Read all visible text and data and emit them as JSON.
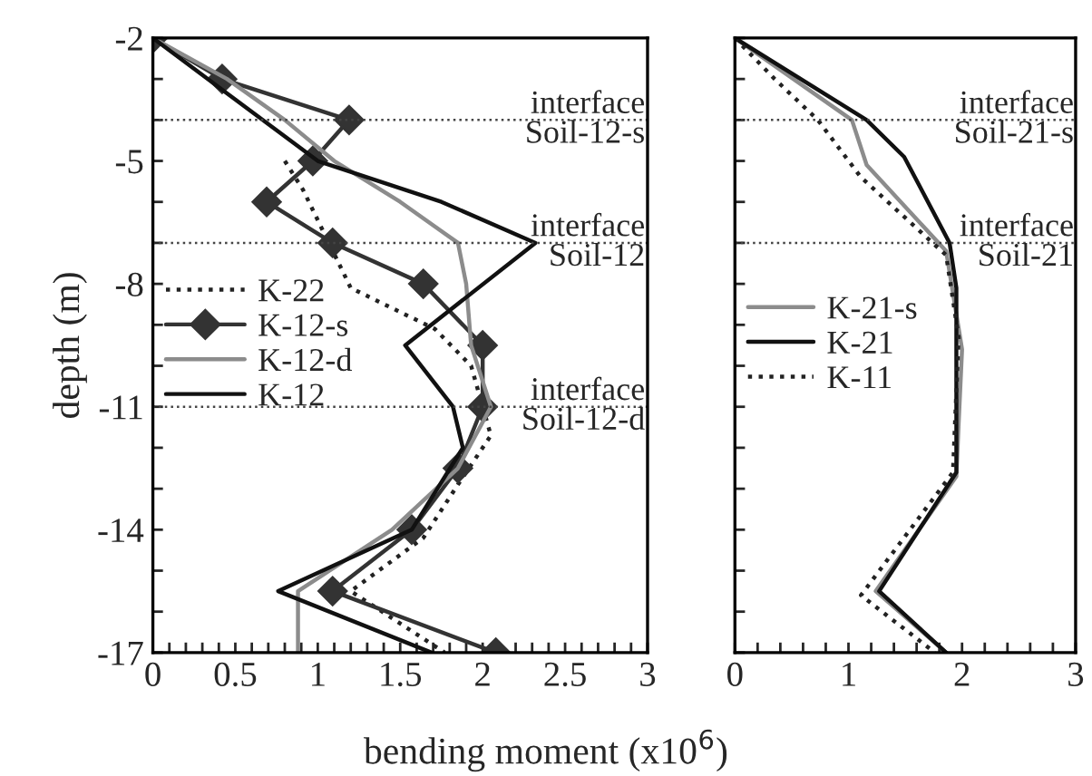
{
  "chart_data": [
    {
      "type": "line",
      "xlabel": "bending moment (x10$^{6}$)",
      "ylabel": "depth (m)",
      "legend": "center left",
      "grid": false,
      "xlim": [
        0,
        3
      ],
      "xticks": [
        0,
        {
          "value": 0.1,
          "label": null
        },
        {
          "value": 0.2,
          "label": null
        },
        {
          "value": 0.3,
          "label": null
        },
        {
          "value": 0.4,
          "label": null
        },
        0.5,
        {
          "value": 0.6,
          "label": null
        },
        {
          "value": 0.7,
          "label": null
        },
        {
          "value": 0.8,
          "label": null
        },
        {
          "value": 0.9,
          "label": null
        },
        1,
        {
          "value": 1.1,
          "label": null
        },
        {
          "value": 1.2,
          "label": null
        },
        {
          "value": 1.3,
          "label": null
        },
        {
          "value": 1.4,
          "label": null
        },
        1.5,
        {
          "value": 1.6,
          "label": null
        },
        {
          "value": 1.7,
          "label": null
        },
        {
          "value": 1.8,
          "label": null
        },
        {
          "value": 1.9,
          "label": null
        },
        2,
        {
          "value": 2.1,
          "label": null
        },
        {
          "value": 2.2,
          "label": null
        },
        {
          "value": 2.3,
          "label": null
        },
        {
          "value": 2.4,
          "label": null
        },
        2.5,
        {
          "value": 2.6,
          "label": null
        },
        {
          "value": 2.7,
          "label": null
        },
        {
          "value": 2.8,
          "label": null
        },
        {
          "value": 2.9,
          "label": null
        },
        3
      ],
      "ylim": [
        -17,
        -2
      ],
      "yticks": [
        -2,
        {
          "value": -3,
          "label": null
        },
        {
          "value": -4,
          "label": null
        },
        -5,
        {
          "value": -6,
          "label": null
        },
        {
          "value": -7,
          "label": null
        },
        -8,
        {
          "value": -9,
          "label": null
        },
        {
          "value": -10,
          "label": null
        },
        -11,
        {
          "value": -12,
          "label": null
        },
        {
          "value": -13,
          "label": null
        },
        -14,
        {
          "value": -15,
          "label": null
        },
        {
          "value": -16,
          "label": null
        },
        -17
      ],
      "ref_lines": [
        {
          "axis": "y",
          "value": -4,
          "label": "interface\nSoil-12-s",
          "line_style": "dotted"
        },
        {
          "axis": "y",
          "value": -7,
          "label": "interface\nSoil-12",
          "line_style": "dotted"
        },
        {
          "axis": "y",
          "value": -11,
          "label": "interface\nSoil-12-d",
          "line_style": "dotted"
        }
      ],
      "series": [
        {
          "name": "K-22",
          "color": "#222222",
          "line_style": "dotted",
          "marker": "none",
          "x": [
            0.8,
            0.91,
            1.2,
            1.71,
            1.93,
            2.0,
            2.05,
            1.85,
            1.64,
            1.2,
            1.77
          ],
          "values": [
            -5,
            -5.7,
            -8.1,
            -9.1,
            -10,
            -11,
            -11.7,
            -12.9,
            -14.2,
            -15.5,
            -17
          ]
        },
        {
          "name": "K-12-s",
          "color": "#333333",
          "line_style": "solid",
          "marker": "diamond",
          "x": [
            0,
            0.42,
            1.19,
            0.97,
            0.69,
            1.09,
            1.64,
            2.0,
            2.0,
            1.85,
            1.57,
            1.09,
            2.08
          ],
          "values": [
            -2,
            -3,
            -4,
            -5,
            -6,
            -7,
            -8,
            -9.5,
            -11,
            -12.5,
            -14,
            -15.5,
            -17
          ]
        },
        {
          "name": "K-12-d",
          "color": "#8c8c8c",
          "line_style": "solid",
          "marker": "none",
          "x": [
            0,
            0.45,
            0.8,
            1.1,
            1.5,
            1.85,
            1.9,
            1.93,
            2.05,
            1.85,
            1.45,
            0.88,
            0.88
          ],
          "values": [
            -2,
            -3,
            -4,
            -5,
            -6,
            -7,
            -8,
            -9.5,
            -11,
            -12.5,
            -14,
            -15.5,
            -17
          ]
        },
        {
          "name": "K-12",
          "color": "#111111",
          "line_style": "solid",
          "marker": "none",
          "x": [
            0,
            1.0,
            1.75,
            2.32,
            1.53,
            1.82,
            1.88,
            1.57,
            0.76,
            1.69
          ],
          "values": [
            -2,
            -5,
            -6,
            -7,
            -9.5,
            -11,
            -12,
            -14,
            -15.5,
            -17
          ]
        }
      ]
    },
    {
      "type": "line",
      "legend": "center left",
      "grid": false,
      "tick_labels": "x",
      "xlim": [
        0,
        3
      ],
      "xticks": [
        0,
        {
          "value": 0.2,
          "label": null
        },
        {
          "value": 0.4,
          "label": null
        },
        {
          "value": 0.6,
          "label": null
        },
        {
          "value": 0.8,
          "label": null
        },
        1,
        {
          "value": 1.2,
          "label": null
        },
        {
          "value": 1.4,
          "label": null
        },
        {
          "value": 1.6,
          "label": null
        },
        {
          "value": 1.8,
          "label": null
        },
        2,
        {
          "value": 2.2,
          "label": null
        },
        {
          "value": 2.4,
          "label": null
        },
        {
          "value": 2.6,
          "label": null
        },
        {
          "value": 2.8,
          "label": null
        },
        3
      ],
      "ylim": [
        -17,
        -2
      ],
      "yticks": [
        {
          "value": -2,
          "label": null
        },
        {
          "value": -3,
          "label": null
        },
        {
          "value": -4,
          "label": null
        },
        {
          "value": -5,
          "label": null
        },
        {
          "value": -6,
          "label": null
        },
        {
          "value": -7,
          "label": null
        },
        {
          "value": -8,
          "label": null
        },
        {
          "value": -9,
          "label": null
        },
        {
          "value": -10,
          "label": null
        },
        {
          "value": -11,
          "label": null
        },
        {
          "value": -12,
          "label": null
        },
        {
          "value": -13,
          "label": null
        },
        {
          "value": -14,
          "label": null
        },
        {
          "value": -15,
          "label": null
        },
        {
          "value": -16,
          "label": null
        },
        {
          "value": -17,
          "label": null
        }
      ],
      "ref_lines": [
        {
          "axis": "y",
          "value": -4,
          "label": "interface\nSoil-21-s",
          "line_style": "dotted"
        },
        {
          "axis": "y",
          "value": -7,
          "label": "interface\nSoil-21",
          "line_style": "dotted"
        }
      ],
      "series": [
        {
          "name": "K-21-s",
          "color": "#8c8c8c",
          "line_style": "solid",
          "marker": "none",
          "x": [
            0,
            1.03,
            1.16,
            1.86,
            2.0,
            1.97,
            1.95,
            1.24,
            1.86
          ],
          "values": [
            -2,
            -4,
            -5.1,
            -7.2,
            -9.6,
            -11.4,
            -12.7,
            -15.5,
            -17
          ]
        },
        {
          "name": "K-21",
          "color": "#111111",
          "line_style": "solid",
          "marker": "none",
          "x": [
            0,
            1.16,
            1.49,
            1.89,
            1.95,
            1.95,
            1.27,
            1.86
          ],
          "values": [
            -2,
            -4,
            -4.9,
            -7,
            -8.1,
            -12.6,
            -15.5,
            -17
          ]
        },
        {
          "name": "K-11",
          "color": "#222222",
          "line_style": "dotted",
          "marker": "none",
          "x": [
            0,
            0.35,
            0.73,
            1.11,
            1.86,
            1.97,
            1.92,
            1.11,
            1.76
          ],
          "values": [
            -2,
            -3,
            -4,
            -5.4,
            -7.3,
            -9.3,
            -12.6,
            -15.6,
            -17
          ]
        }
      ]
    }
  ]
}
